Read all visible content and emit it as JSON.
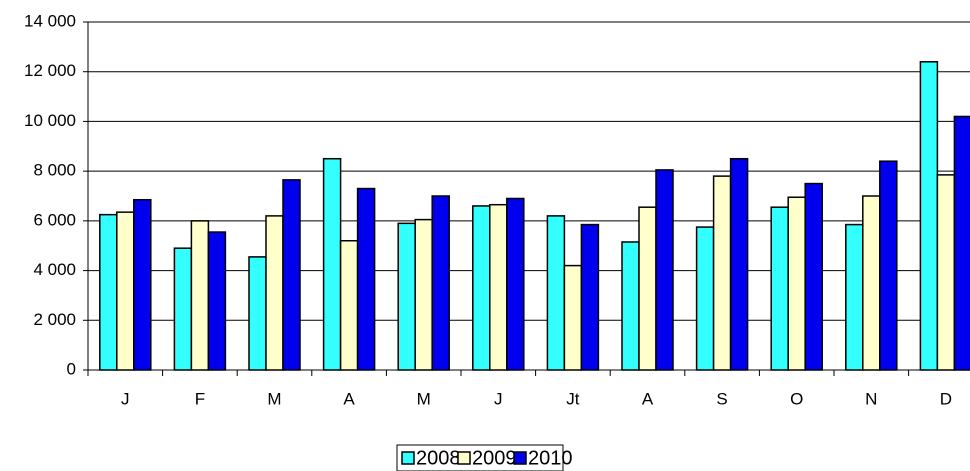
{
  "chart_data": {
    "type": "bar",
    "categories": [
      "J",
      "F",
      "M",
      "A",
      "M",
      "J",
      "Jt",
      "A",
      "S",
      "O",
      "N",
      "D"
    ],
    "series": [
      {
        "name": "2008",
        "color": "#33ffff",
        "values": [
          6250,
          4900,
          4550,
          8500,
          5900,
          6600,
          6200,
          5150,
          5750,
          6550,
          5850,
          12400
        ]
      },
      {
        "name": "2009",
        "color": "#ffffcc",
        "values": [
          6350,
          6000,
          6200,
          5200,
          6050,
          6650,
          4200,
          6550,
          7800,
          6950,
          7000,
          7850
        ]
      },
      {
        "name": "2010",
        "color": "#0000ee",
        "values": [
          6850,
          5550,
          7650,
          7300,
          7000,
          6900,
          5850,
          8050,
          8500,
          7500,
          8400,
          10200
        ]
      }
    ],
    "ylim": [
      0,
      14000
    ],
    "yticks": [
      {
        "value": 0,
        "label": "0"
      },
      {
        "value": 2000,
        "label": "2 000"
      },
      {
        "value": 4000,
        "label": "4 000"
      },
      {
        "value": 6000,
        "label": "6 000"
      },
      {
        "value": 8000,
        "label": "8 000"
      },
      {
        "value": 10000,
        "label": "10 000"
      },
      {
        "value": 12000,
        "label": "12 000"
      },
      {
        "value": 14000,
        "label": "14 000"
      }
    ],
    "grid": true
  }
}
